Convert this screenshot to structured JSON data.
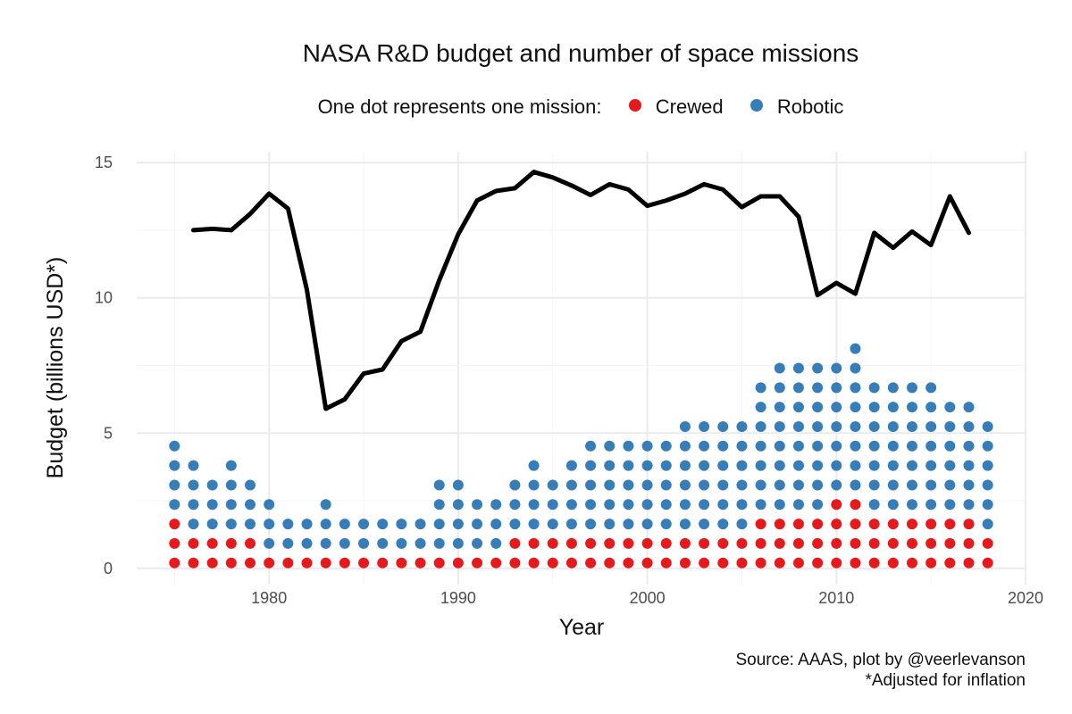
{
  "chart_data": {
    "type": "line+dot",
    "title": "NASA R&D budget and number of space missions",
    "legend": {
      "title": "One dot represents one mission:",
      "entries": [
        {
          "label": "Crewed",
          "color": "#e41a1c"
        },
        {
          "label": "Robotic",
          "color": "#377eb8"
        }
      ],
      "placement": "top"
    },
    "xlabel": "Year",
    "ylabel": "Budget (billions USD*)",
    "xlim": [
      1973,
      2020
    ],
    "ylim": [
      -0.6,
      15.4
    ],
    "x_ticks": [
      1980,
      1990,
      2000,
      2010,
      2020
    ],
    "y_ticks": [
      0,
      5,
      10,
      15
    ],
    "grid": true,
    "dot_unit": 0.72,
    "budget_series": {
      "name": "Budget",
      "color": "#000000",
      "x": [
        1976,
        1977,
        1978,
        1979,
        1980,
        1981,
        1982,
        1983,
        1984,
        1985,
        1986,
        1987,
        1988,
        1989,
        1990,
        1991,
        1992,
        1993,
        1994,
        1995,
        1996,
        1997,
        1998,
        1999,
        2000,
        2001,
        2002,
        2003,
        2004,
        2005,
        2006,
        2007,
        2008,
        2009,
        2010,
        2011,
        2012,
        2013,
        2014,
        2015,
        2016,
        2017
      ],
      "y": [
        12.5,
        12.55,
        12.5,
        13.1,
        13.85,
        13.3,
        10.3,
        5.9,
        6.25,
        7.2,
        7.35,
        8.4,
        8.75,
        10.65,
        12.35,
        13.6,
        13.95,
        14.05,
        14.65,
        14.45,
        14.15,
        13.8,
        14.2,
        14.0,
        13.4,
        13.6,
        13.85,
        14.2,
        14.0,
        13.35,
        13.75,
        13.75,
        13.0,
        10.1,
        10.55,
        10.15,
        12.4,
        11.85,
        12.45,
        11.95,
        13.75,
        12.4
      ]
    },
    "mission_series": [
      {
        "name": "Crewed",
        "color": "#e41a1c",
        "x": [
          1975,
          1976,
          1977,
          1978,
          1979,
          1980,
          1981,
          1982,
          1983,
          1984,
          1985,
          1986,
          1987,
          1988,
          1989,
          1990,
          1991,
          1992,
          1993,
          1994,
          1995,
          1996,
          1997,
          1998,
          1999,
          2000,
          2001,
          2002,
          2003,
          2004,
          2005,
          2006,
          2007,
          2008,
          2009,
          2010,
          2011,
          2012,
          2013,
          2014,
          2015,
          2016,
          2017,
          2018
        ],
        "values": [
          3,
          2,
          2,
          2,
          2,
          1,
          1,
          1,
          1,
          1,
          1,
          1,
          1,
          1,
          1,
          1,
          1,
          1,
          2,
          2,
          2,
          2,
          2,
          2,
          2,
          2,
          2,
          2,
          2,
          2,
          2,
          3,
          3,
          3,
          3,
          4,
          4,
          3,
          3,
          3,
          3,
          3,
          3,
          2
        ]
      },
      {
        "name": "Robotic",
        "color": "#377eb8",
        "x": [
          1975,
          1976,
          1977,
          1978,
          1979,
          1980,
          1981,
          1982,
          1983,
          1984,
          1985,
          1986,
          1987,
          1988,
          1989,
          1990,
          1991,
          1992,
          1993,
          1994,
          1995,
          1996,
          1997,
          1998,
          1999,
          2000,
          2001,
          2002,
          2003,
          2004,
          2005,
          2006,
          2007,
          2008,
          2009,
          2010,
          2011,
          2012,
          2013,
          2014,
          2015,
          2016,
          2017,
          2018
        ],
        "values": [
          4,
          4,
          3,
          4,
          3,
          3,
          2,
          2,
          3,
          2,
          2,
          2,
          2,
          2,
          4,
          4,
          3,
          3,
          3,
          4,
          3,
          4,
          5,
          5,
          5,
          5,
          5,
          6,
          6,
          6,
          6,
          7,
          8,
          8,
          8,
          7,
          8,
          7,
          7,
          7,
          7,
          6,
          6,
          6
        ]
      }
    ]
  },
  "caption": {
    "source": "Source: AAAS, plot by @veerlevanson",
    "note": "*Adjusted for inflation"
  }
}
